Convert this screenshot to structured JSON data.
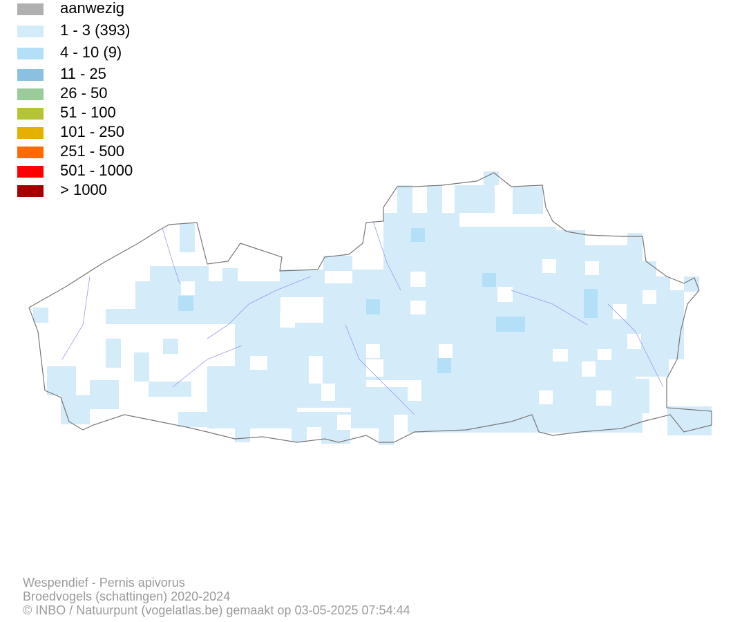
{
  "legend": {
    "items": [
      {
        "label": "aanwezig",
        "color": "#b0b0b0"
      },
      {
        "label": "1 - 3 (393)",
        "color": "#d4ebfa"
      },
      {
        "label": "4 - 10 (9)",
        "color": "#b3e0f7"
      },
      {
        "label": "11 - 25",
        "color": "#8ac0e0"
      },
      {
        "label": "26 - 50",
        "color": "#99cc99"
      },
      {
        "label": "51 - 100",
        "color": "#b5c434"
      },
      {
        "label": "101 - 250",
        "color": "#e6b000"
      },
      {
        "label": "251 - 500",
        "color": "#ff6a00"
      },
      {
        "label": "501 - 1000",
        "color": "#ff0000"
      },
      {
        "label": "> 1000",
        "color": "#a50000"
      }
    ]
  },
  "footer": {
    "lines": [
      "Wespendief - Pernis apivorus",
      "Broedvogels (schattingen) 2020-2024",
      "© INBO / Natuurpunt (vogelatlas.be) gemaakt op 03-05-2025 07:54:44"
    ]
  }
}
